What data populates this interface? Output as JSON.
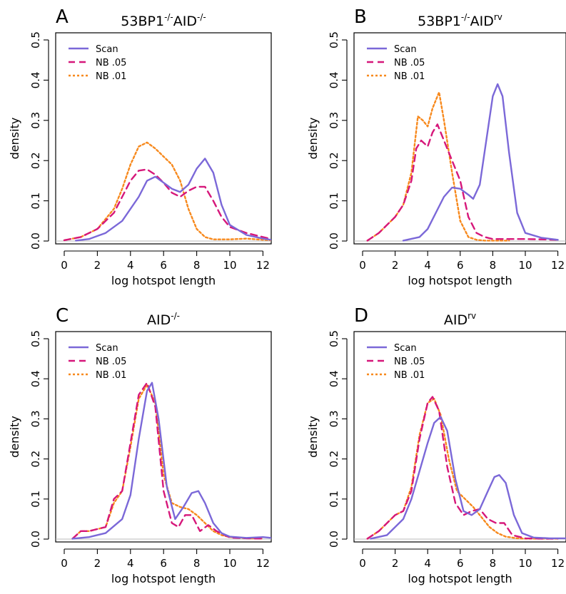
{
  "chart_data": [
    {
      "panel": "A",
      "type": "line",
      "title_main": "53BP1",
      "title_sup1": "-/-",
      "title_mid": "AID",
      "title_sup2": "-/-",
      "xlabel": "log hotspot length",
      "ylabel": "density",
      "xlim": [
        0,
        12.5
      ],
      "ylim": [
        0,
        0.5
      ],
      "xticks": [
        0,
        2,
        4,
        6,
        8,
        10,
        12
      ],
      "yticks": [
        0.0,
        0.1,
        0.2,
        0.3,
        0.4,
        0.5
      ],
      "ytick_labels": [
        "0.0",
        "0.1",
        "0.2",
        "0.3",
        "0.4",
        "0.5"
      ],
      "legend": "top-left",
      "series": [
        {
          "name": "Scan",
          "color": "#7b68d8",
          "dash": "solid",
          "x": [
            0.7,
            1.5,
            2.5,
            3.5,
            4.5,
            5.0,
            5.5,
            6.0,
            6.5,
            7.0,
            7.5,
            8.0,
            8.5,
            9.0,
            9.5,
            10.0,
            11.0,
            12.0,
            12.5
          ],
          "y": [
            0.001,
            0.005,
            0.02,
            0.05,
            0.11,
            0.15,
            0.16,
            0.145,
            0.13,
            0.122,
            0.14,
            0.18,
            0.205,
            0.17,
            0.09,
            0.04,
            0.015,
            0.006,
            0.003
          ]
        },
        {
          "name": "NB .05",
          "color": "#d6177a",
          "dash": "dashed",
          "x": [
            0,
            1,
            2,
            3,
            3.5,
            4,
            4.5,
            5.0,
            5.5,
            6.0,
            6.5,
            7.0,
            7.5,
            8.0,
            8.5,
            9.0,
            9.5,
            10.0,
            11.0,
            12.0,
            12.5
          ],
          "y": [
            0.002,
            0.01,
            0.03,
            0.07,
            0.11,
            0.15,
            0.175,
            0.178,
            0.165,
            0.145,
            0.12,
            0.11,
            0.125,
            0.135,
            0.135,
            0.1,
            0.06,
            0.035,
            0.02,
            0.01,
            0.005
          ]
        },
        {
          "name": "NB .01",
          "color": "#f7891d",
          "dash": "dotted",
          "x": [
            0,
            1,
            2,
            3,
            3.5,
            4,
            4.5,
            5.0,
            5.5,
            6.0,
            6.5,
            7.0,
            7.5,
            8.0,
            8.5,
            9.0,
            10.0,
            11.0,
            12.0,
            12.5
          ],
          "y": [
            0.002,
            0.01,
            0.03,
            0.08,
            0.13,
            0.19,
            0.235,
            0.245,
            0.23,
            0.21,
            0.19,
            0.15,
            0.08,
            0.03,
            0.01,
            0.004,
            0.004,
            0.006,
            0.003,
            0.002
          ]
        }
      ]
    },
    {
      "panel": "B",
      "type": "line",
      "title_main": "53BP1",
      "title_sup1": "-/-",
      "title_mid": "AID",
      "title_sup2": "rv",
      "xlabel": "log hotspot length",
      "ylabel": "density",
      "xlim": [
        0,
        12.5
      ],
      "ylim": [
        0,
        0.5
      ],
      "xticks": [
        0,
        2,
        4,
        6,
        8,
        10,
        12
      ],
      "yticks": [
        0.0,
        0.1,
        0.2,
        0.3,
        0.4,
        0.5
      ],
      "ytick_labels": [
        "0.0",
        "0.1",
        "0.2",
        "0.3",
        "0.4",
        "0.5"
      ],
      "legend": "top-left",
      "series": [
        {
          "name": "Scan",
          "color": "#7b68d8",
          "dash": "solid",
          "x": [
            2.5,
            3.5,
            4.0,
            4.5,
            5.0,
            5.5,
            6.0,
            6.5,
            6.8,
            7.2,
            7.6,
            8.0,
            8.3,
            8.6,
            9.0,
            9.5,
            10.0,
            11.0,
            12.0
          ],
          "y": [
            0.001,
            0.01,
            0.03,
            0.07,
            0.11,
            0.133,
            0.13,
            0.115,
            0.105,
            0.14,
            0.25,
            0.36,
            0.39,
            0.36,
            0.22,
            0.07,
            0.02,
            0.008,
            0.003
          ]
        },
        {
          "name": "NB .05",
          "color": "#d6177a",
          "dash": "dashed",
          "x": [
            0.3,
            1,
            2,
            2.5,
            3.0,
            3.3,
            3.6,
            4.0,
            4.3,
            4.6,
            5.0,
            5.5,
            6.0,
            6.5,
            7.0,
            7.5,
            8.0,
            9.0,
            10.0,
            11.0,
            12.0
          ],
          "y": [
            0.001,
            0.02,
            0.06,
            0.09,
            0.15,
            0.23,
            0.25,
            0.235,
            0.27,
            0.29,
            0.25,
            0.2,
            0.15,
            0.06,
            0.02,
            0.01,
            0.005,
            0.005,
            0.005,
            0.004,
            0.003
          ]
        },
        {
          "name": "NB .01",
          "color": "#f7891d",
          "dash": "dotted",
          "x": [
            0.3,
            1,
            2,
            2.5,
            3.0,
            3.4,
            3.7,
            4.0,
            4.3,
            4.7,
            5.0,
            5.5,
            6.0,
            6.5,
            7.0,
            7.5,
            8.0,
            9.0
          ],
          "y": [
            0.001,
            0.02,
            0.06,
            0.09,
            0.17,
            0.31,
            0.3,
            0.285,
            0.33,
            0.37,
            0.3,
            0.17,
            0.05,
            0.01,
            0.003,
            0.001,
            0.001,
            0.001
          ]
        }
      ]
    },
    {
      "panel": "C",
      "type": "line",
      "title_main": "AID",
      "title_sup1": "-/-",
      "title_mid": "",
      "title_sup2": "",
      "xlabel": "log hotspot length",
      "ylabel": "density",
      "xlim": [
        0,
        12.5
      ],
      "ylim": [
        0,
        0.5
      ],
      "xticks": [
        0,
        2,
        4,
        6,
        8,
        10,
        12
      ],
      "yticks": [
        0.0,
        0.1,
        0.2,
        0.3,
        0.4,
        0.5
      ],
      "ytick_labels": [
        "0.0",
        "0.1",
        "0.2",
        "0.3",
        "0.4",
        "0.5"
      ],
      "legend": "top-left",
      "series": [
        {
          "name": "Scan",
          "color": "#7b68d8",
          "dash": "solid",
          "x": [
            0.5,
            1.5,
            2.5,
            3.5,
            4.0,
            4.5,
            5.0,
            5.3,
            5.7,
            6.2,
            6.7,
            7.2,
            7.7,
            8.1,
            8.5,
            9.0,
            9.5,
            10.0,
            11.0,
            12.0,
            12.5
          ],
          "y": [
            0.001,
            0.005,
            0.015,
            0.05,
            0.11,
            0.25,
            0.37,
            0.39,
            0.3,
            0.13,
            0.05,
            0.08,
            0.115,
            0.12,
            0.09,
            0.04,
            0.015,
            0.006,
            0.003,
            0.005,
            0.003
          ]
        },
        {
          "name": "NB .05",
          "color": "#d6177a",
          "dash": "dashed",
          "x": [
            0.5,
            1.0,
            1.5,
            2.5,
            3.0,
            3.5,
            4.0,
            4.5,
            5.0,
            5.5,
            6.0,
            6.5,
            6.9,
            7.3,
            7.7,
            8.2,
            8.7,
            9.2,
            10.0,
            11.0,
            12.0
          ],
          "y": [
            0.001,
            0.02,
            0.02,
            0.03,
            0.1,
            0.12,
            0.24,
            0.36,
            0.39,
            0.33,
            0.12,
            0.04,
            0.03,
            0.06,
            0.06,
            0.02,
            0.035,
            0.02,
            0.004,
            0.002,
            0.001
          ]
        },
        {
          "name": "NB .01",
          "color": "#f7891d",
          "dash": "dotted",
          "x": [
            0.5,
            1.0,
            1.5,
            2.5,
            3.0,
            3.5,
            4.0,
            4.5,
            5.0,
            5.5,
            6.0,
            6.5,
            7.0,
            7.5,
            8.0,
            8.5,
            9.0,
            9.5,
            10.0,
            11.0,
            12.0
          ],
          "y": [
            0.001,
            0.02,
            0.02,
            0.03,
            0.09,
            0.12,
            0.23,
            0.35,
            0.385,
            0.34,
            0.16,
            0.09,
            0.08,
            0.075,
            0.06,
            0.04,
            0.02,
            0.01,
            0.005,
            0.002,
            0.001
          ]
        }
      ]
    },
    {
      "panel": "D",
      "type": "line",
      "title_main": "AID",
      "title_sup1": "rv",
      "title_mid": "",
      "title_sup2": "",
      "xlabel": "log hotspot length",
      "ylabel": "density",
      "xlim": [
        0,
        12.5
      ],
      "ylim": [
        0,
        0.5
      ],
      "xticks": [
        0,
        2,
        4,
        6,
        8,
        10,
        12
      ],
      "yticks": [
        0.0,
        0.1,
        0.2,
        0.3,
        0.4,
        0.5
      ],
      "ytick_labels": [
        "0.0",
        "0.1",
        "0.2",
        "0.3",
        "0.4",
        "0.5"
      ],
      "legend": "top-left",
      "series": [
        {
          "name": "Scan",
          "color": "#7b68d8",
          "dash": "solid",
          "x": [
            0.5,
            1.5,
            2.5,
            3.0,
            3.5,
            4.0,
            4.4,
            4.8,
            5.2,
            5.7,
            6.2,
            6.7,
            7.2,
            7.7,
            8.1,
            8.4,
            8.8,
            9.3,
            9.8,
            10.5,
            11.5,
            12.5
          ],
          "y": [
            0.001,
            0.01,
            0.05,
            0.1,
            0.17,
            0.24,
            0.29,
            0.305,
            0.27,
            0.15,
            0.07,
            0.06,
            0.075,
            0.12,
            0.155,
            0.16,
            0.14,
            0.06,
            0.015,
            0.004,
            0.002,
            0.002
          ]
        },
        {
          "name": "NB .05",
          "color": "#d6177a",
          "dash": "dashed",
          "x": [
            0.3,
            1.0,
            2.0,
            2.5,
            3.0,
            3.5,
            4.0,
            4.3,
            4.7,
            5.2,
            5.7,
            6.2,
            6.7,
            7.2,
            7.7,
            8.2,
            8.7,
            9.2,
            10.0,
            11.0,
            12.0
          ],
          "y": [
            0.001,
            0.02,
            0.06,
            0.07,
            0.12,
            0.25,
            0.34,
            0.355,
            0.32,
            0.18,
            0.09,
            0.06,
            0.07,
            0.075,
            0.05,
            0.04,
            0.04,
            0.01,
            0.002,
            0.001,
            0.001
          ]
        },
        {
          "name": "NB .01",
          "color": "#f7891d",
          "dash": "dotted",
          "x": [
            0.3,
            1.0,
            2.0,
            2.5,
            3.0,
            3.5,
            4.0,
            4.4,
            4.8,
            5.3,
            5.8,
            6.3,
            6.8,
            7.3,
            7.8,
            8.3,
            8.8,
            9.5,
            10.0,
            11.0,
            12.0
          ],
          "y": [
            0.001,
            0.02,
            0.06,
            0.07,
            0.13,
            0.26,
            0.34,
            0.35,
            0.31,
            0.2,
            0.12,
            0.1,
            0.08,
            0.055,
            0.03,
            0.015,
            0.006,
            0.002,
            0.001,
            0.001,
            0.001
          ]
        }
      ]
    }
  ]
}
